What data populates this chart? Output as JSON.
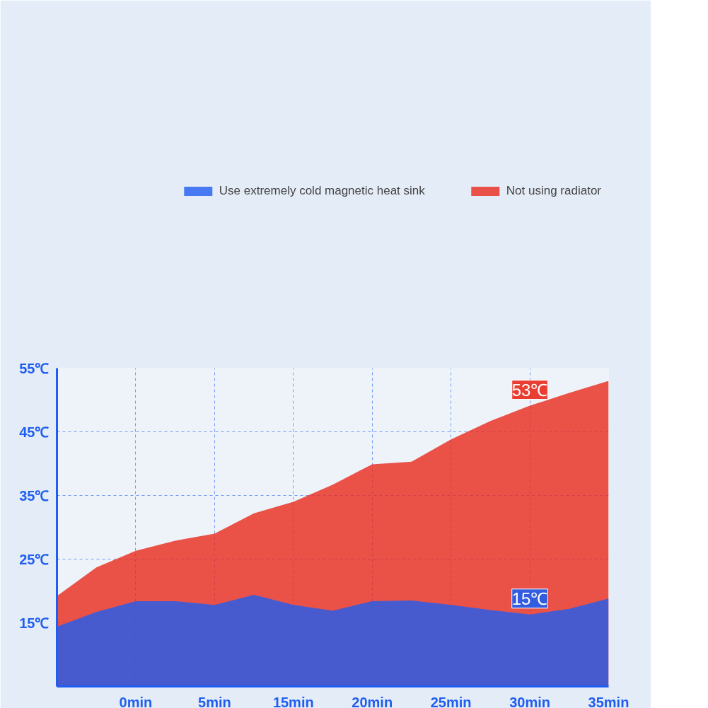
{
  "chart_data": {
    "type": "area",
    "categories": [
      null,
      null,
      "0min",
      null,
      "5min",
      null,
      "15min",
      null,
      "20min",
      null,
      "25min",
      null,
      "30min",
      null,
      "35min"
    ],
    "series": [
      {
        "name": "Use extremely cold magnetic heat sink",
        "color": "#1f5ef0",
        "values": [
          14.4,
          16.7,
          18.4,
          18.4,
          17.8,
          19.4,
          17.8,
          16.9,
          18.4,
          18.5,
          17.8,
          17.0,
          16.3,
          17.2,
          18.8
        ]
      },
      {
        "name": "Not using radiator",
        "color": "#e8291c",
        "values": [
          19.2,
          23.7,
          26.3,
          27.9,
          29.0,
          32.2,
          34.0,
          36.7,
          39.9,
          40.3,
          43.8,
          46.7,
          49.1,
          51.1,
          53.0
        ]
      }
    ],
    "ylim": [
      5,
      55
    ],
    "yticks": [
      {
        "value": 15,
        "label": "15℃"
      },
      {
        "value": 25,
        "label": "25℃"
      },
      {
        "value": 35,
        "label": "35℃"
      },
      {
        "value": 45,
        "label": "45℃"
      },
      {
        "value": 55,
        "label": "55℃"
      }
    ],
    "annotations": [
      "53℃",
      "15℃"
    ],
    "grid": true,
    "legend": "top"
  }
}
